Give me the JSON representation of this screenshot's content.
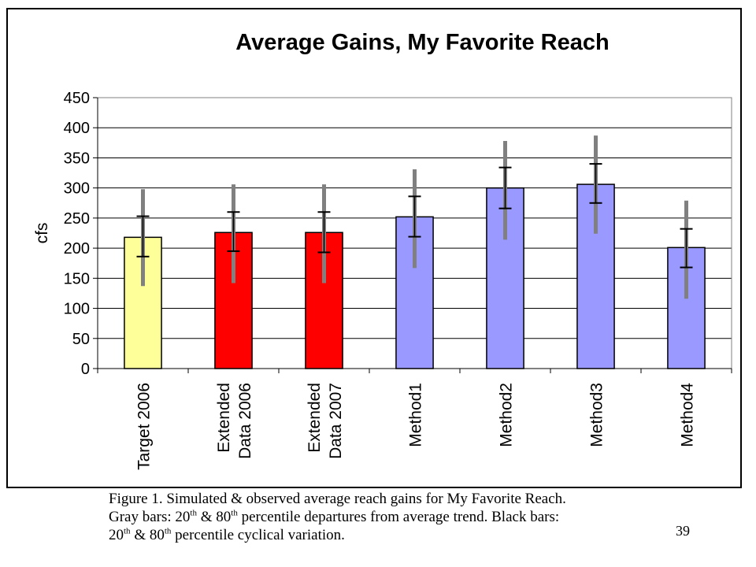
{
  "chart_data": {
    "type": "bar",
    "title": "Average Gains, My Favorite Reach",
    "ylabel": "cfs",
    "xlabel": "",
    "ylim": [
      0,
      450
    ],
    "yticks": [
      0,
      50,
      100,
      150,
      200,
      250,
      300,
      350,
      400,
      450
    ],
    "grid": true,
    "categories": [
      [
        "Target 2006"
      ],
      [
        "Extended",
        "Data 2006"
      ],
      [
        "Extended",
        "Data 2007"
      ],
      [
        "Method1"
      ],
      [
        "Method2"
      ],
      [
        "Method3"
      ],
      [
        "Method4"
      ]
    ],
    "values": [
      218,
      226,
      226,
      252,
      300,
      306,
      201
    ],
    "bar_colors": [
      "#ffff99",
      "#ff0000",
      "#ff0000",
      "#9999ff",
      "#9999ff",
      "#9999ff",
      "#9999ff"
    ],
    "gray_bars": [
      [
        137,
        298
      ],
      [
        142,
        306
      ],
      [
        142,
        306
      ],
      [
        167,
        331
      ],
      [
        214,
        378
      ],
      [
        224,
        387
      ],
      [
        116,
        279
      ]
    ],
    "black_bars": [
      [
        186,
        253
      ],
      [
        195,
        260
      ],
      [
        193,
        260
      ],
      [
        219,
        286
      ],
      [
        266,
        334
      ],
      [
        275,
        340
      ],
      [
        168,
        232
      ]
    ],
    "gray_bar_color": "#808080",
    "black_bar_color": "#000000"
  },
  "caption": {
    "line1": "Figure 1.  Simulated & observed average reach gains for My Favorite Reach.",
    "line2_a": "Gray bars: 20",
    "sup1": "th",
    "line2_b": " & 80",
    "sup2": "th",
    "line2_c": " percentile departures from average trend.  Black bars:",
    "line3_a": "20",
    "sup3": "th",
    "line3_b": " & 80",
    "sup4": "th",
    "line3_c": " percentile cyclical variation."
  },
  "page_number": "39"
}
